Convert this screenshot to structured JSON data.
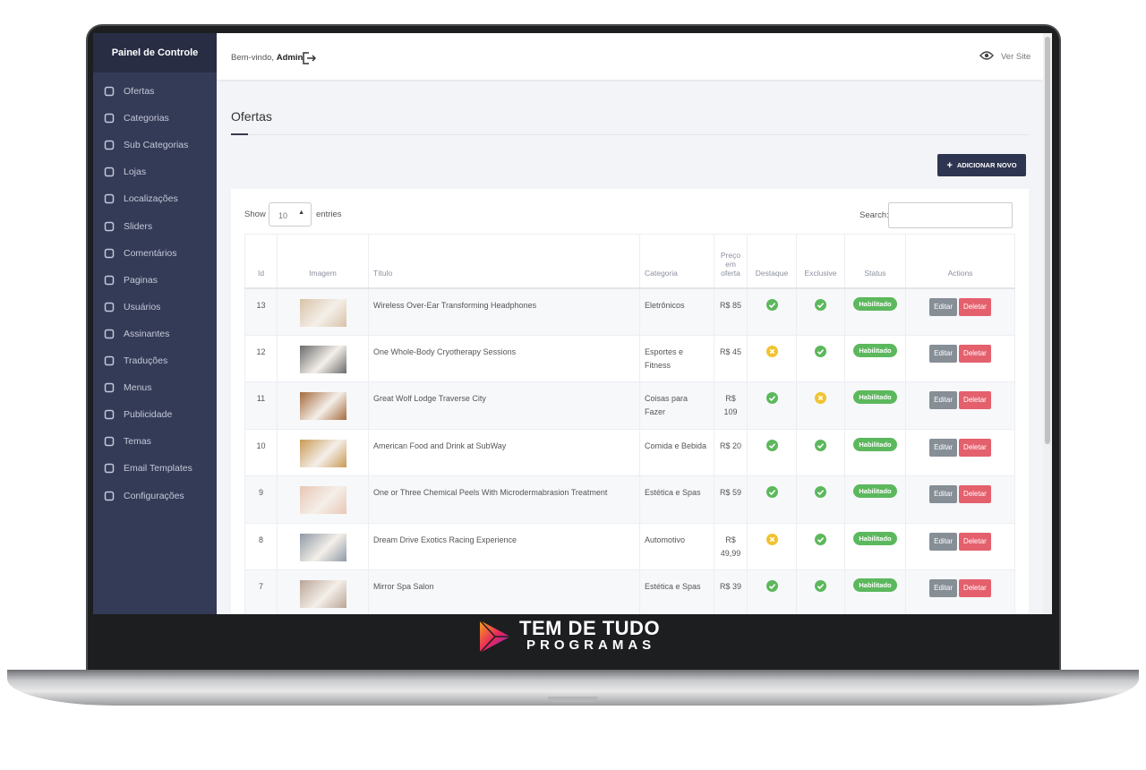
{
  "sidebar": {
    "title": "Painel de Controle",
    "menu": [
      "Ofertas",
      "Categorias",
      "Sub Categorias",
      "Lojas",
      "Localizações",
      "Sliders",
      "Comentários",
      "Paginas",
      "Usuários",
      "Assinantes",
      "Traduções",
      "Menus",
      "Publicidade",
      "Temas",
      "Email Templates",
      "Configurações"
    ]
  },
  "header": {
    "welcome": "Bem-vindo,",
    "user": "Admin",
    "view_site": "Ver Site"
  },
  "page": {
    "title": "Ofertas",
    "add_button": "ADICIONAR NOVO"
  },
  "table_controls": {
    "show": "Show",
    "entries_value": "10",
    "entries": "entries",
    "search": "Search:"
  },
  "table": {
    "columns": [
      "Id",
      "Imagem",
      "Título",
      "Categoria",
      "Preço em oferta",
      "Destaque",
      "Exclusive",
      "Status",
      "Actions"
    ],
    "edit_label": "Editar",
    "delete_label": "Deletar",
    "rows": [
      {
        "id": 13,
        "title": "Wireless Over-Ear Transforming Headphones",
        "category": "Eletrônicos",
        "price": "R$ 85",
        "featured": true,
        "exclusive": true,
        "status": "Habilitado"
      },
      {
        "id": 12,
        "title": "One Whole-Body Cryotherapy Sessions",
        "category": "Esportes e Fitness",
        "price": "R$ 45",
        "featured": false,
        "exclusive": true,
        "status": "Habilitado"
      },
      {
        "id": 11,
        "title": "Great Wolf Lodge Traverse City",
        "category": "Coisas para Fazer",
        "price": "R$ 109",
        "featured": true,
        "exclusive": false,
        "status": "Habilitado"
      },
      {
        "id": 10,
        "title": "American Food and Drink at SubWay",
        "category": "Comida e Bebida",
        "price": "R$ 20",
        "featured": true,
        "exclusive": true,
        "status": "Habilitado"
      },
      {
        "id": 9,
        "title": "One or Three Chemical Peels With Microdermabrasion Treatment",
        "category": "Estética e Spas",
        "price": "R$ 59",
        "featured": true,
        "exclusive": true,
        "status": "Habilitado"
      },
      {
        "id": 8,
        "title": "Dream Drive Exotics Racing Experience",
        "category": "Automotivo",
        "price": "R$ 49,99",
        "featured": false,
        "exclusive": true,
        "status": "Habilitado"
      },
      {
        "id": 7,
        "title": "Mirror Spa Salon",
        "category": "Estética e Spas",
        "price": "R$ 39",
        "featured": true,
        "exclusive": true,
        "status": "Habilitado"
      }
    ]
  },
  "logo": {
    "line1": "TEM DE TUDO",
    "line2": "PROGRAMAS"
  }
}
